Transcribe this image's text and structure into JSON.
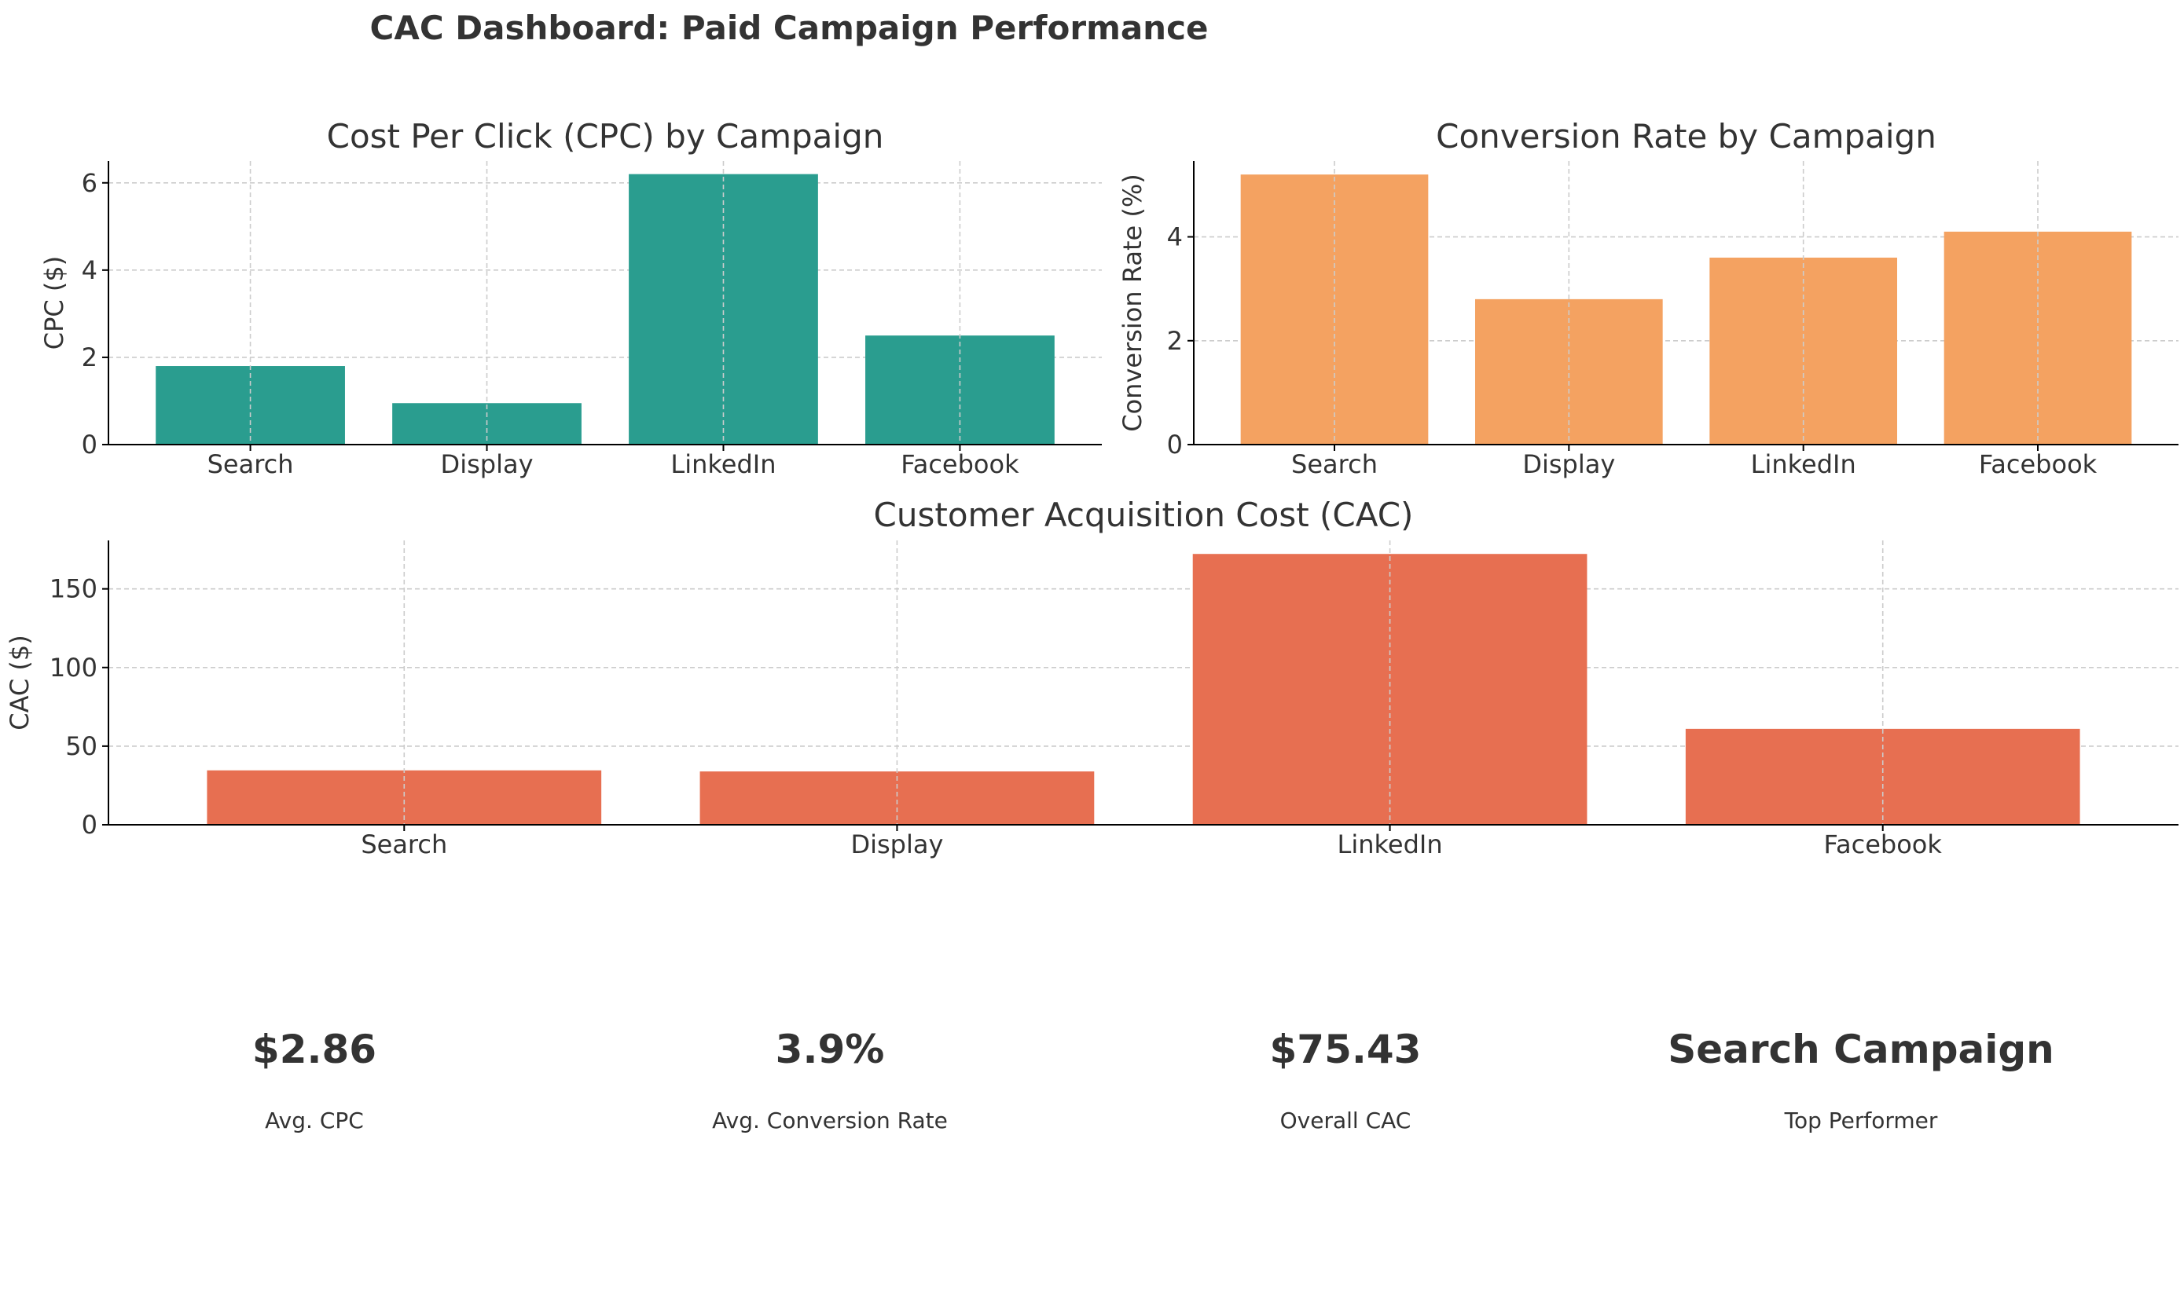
{
  "title": "CAC Dashboard: Paid Campaign Performance",
  "colors": {
    "text": "#333333",
    "cpc_bar": "#2a9d8f",
    "conversion_bar": "#f4a261",
    "cac_bar": "#e76f51",
    "grid": "#cccccc",
    "axis": "#000000"
  },
  "chart_data": [
    {
      "id": "cpc",
      "type": "bar",
      "title": "Cost Per Click (CPC) by Campaign",
      "xlabel": "",
      "ylabel": "CPC ($)",
      "categories": [
        "Search",
        "Display",
        "LinkedIn",
        "Facebook"
      ],
      "values": [
        1.8,
        0.95,
        6.2,
        2.5
      ],
      "ylim": [
        0,
        6.5
      ],
      "yticks": [
        0,
        2,
        4,
        6
      ],
      "ytick_labels": [
        "0",
        "2",
        "4",
        "6"
      ],
      "grid": true,
      "color": "#2a9d8f"
    },
    {
      "id": "conversion",
      "type": "bar",
      "title": "Conversion Rate by Campaign",
      "xlabel": "",
      "ylabel": "Conversion Rate (%)",
      "categories": [
        "Search",
        "Display",
        "LinkedIn",
        "Facebook"
      ],
      "values": [
        5.2,
        2.8,
        3.6,
        4.1
      ],
      "ylim": [
        0,
        5.46
      ],
      "yticks": [
        0,
        2,
        4
      ],
      "ytick_labels": [
        "0",
        "2",
        "4"
      ],
      "grid": true,
      "color": "#f4a261"
    },
    {
      "id": "cac",
      "type": "bar",
      "title": "Customer Acquisition Cost (CAC)",
      "xlabel": "",
      "ylabel": "CAC ($)",
      "categories": [
        "Search",
        "Display",
        "LinkedIn",
        "Facebook"
      ],
      "values": [
        34.6,
        33.9,
        172.2,
        61.0
      ],
      "ylim": [
        0,
        180.8
      ],
      "yticks": [
        0,
        50,
        100,
        150
      ],
      "ytick_labels": [
        "0",
        "50",
        "100",
        "150"
      ],
      "grid": true,
      "color": "#e76f51"
    }
  ],
  "kpis": [
    {
      "value": "$2.86",
      "label": "Avg. CPC"
    },
    {
      "value": "3.9%",
      "label": "Avg. Conversion Rate"
    },
    {
      "value": "$75.43",
      "label": "Overall CAC"
    },
    {
      "value": "Search Campaign",
      "label": "Top Performer"
    }
  ]
}
